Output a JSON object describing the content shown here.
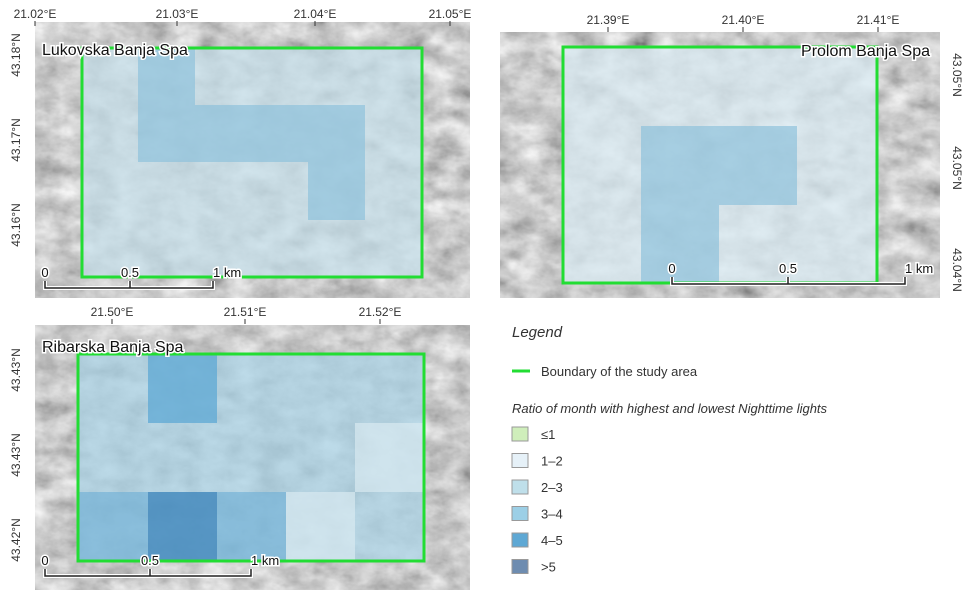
{
  "maps": [
    {
      "title": "Lukovska Banja Spa",
      "top_ticks": [
        "21.02°E",
        "21.03°E",
        "21.04°E",
        "21.05°E"
      ],
      "side_ticks": [
        "43.18°N",
        "43.17°N",
        "43.16°N"
      ],
      "scale": [
        "0",
        "0.5",
        "1 km"
      ]
    },
    {
      "title": "Prolom Banja Spa",
      "top_ticks": [
        "21.39°E",
        "21.40°E",
        "21.41°E"
      ],
      "side_ticks": [
        "43.05°N",
        "43.05°N",
        "43.04°N"
      ],
      "scale": [
        "0",
        "0.5",
        "1 km"
      ]
    },
    {
      "title": "Ribarska Banja Spa",
      "top_ticks": [
        "21.50°E",
        "21.51°E",
        "21.52°E"
      ],
      "side_ticks": [
        "43.43°N",
        "43.43°N",
        "43.42°N"
      ],
      "scale": [
        "0",
        "0.5",
        "1 km"
      ]
    }
  ],
  "legend": {
    "title": "Legend",
    "boundary": "Boundary of the study area",
    "boundary_color": "#22dd33",
    "subtitle": "Ratio of month with highest and lowest Nighttime lights",
    "classes": [
      {
        "label": "≤1",
        "color": "#cfeebb"
      },
      {
        "label": "1–2",
        "color": "#e6f1f8"
      },
      {
        "label": "2–3",
        "color": "#bfdfea"
      },
      {
        "label": "3–4",
        "color": "#9ccfe6"
      },
      {
        "label": "4–5",
        "color": "#5ea8d4"
      },
      {
        "label": ">5",
        "color": "#6e8cb0"
      }
    ]
  }
}
